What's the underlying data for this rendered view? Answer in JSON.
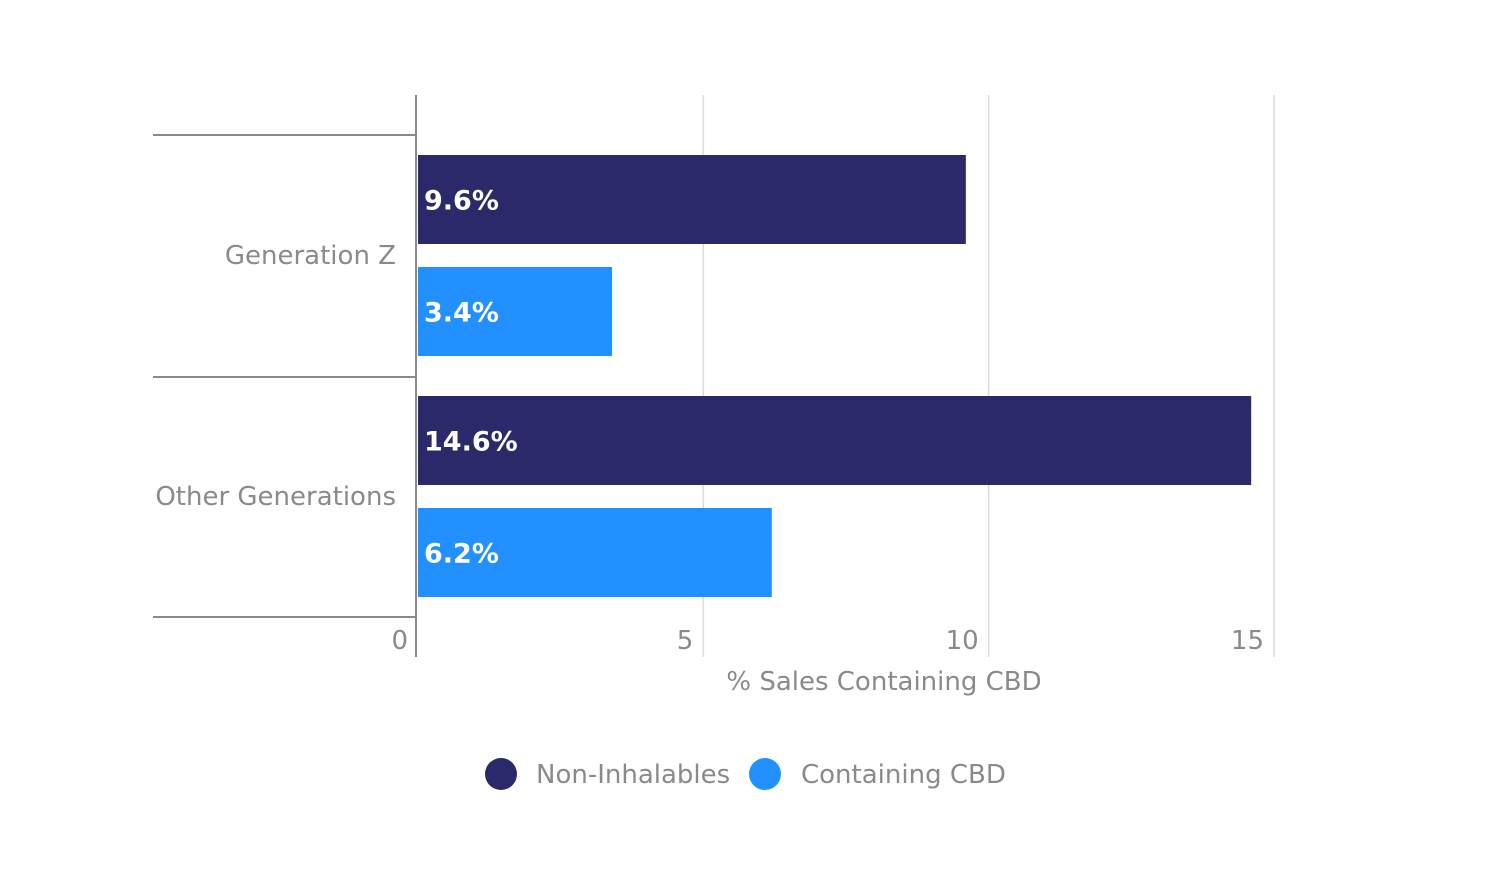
{
  "chart_data": {
    "type": "bar",
    "orientation": "horizontal",
    "categories": [
      "Generation Z",
      "Other Generations"
    ],
    "series": [
      {
        "name": "Non-Inhalables",
        "values": [
          9.6,
          14.6
        ],
        "labels": [
          "9.6%",
          "14.6%"
        ],
        "color": "#2a2a6a"
      },
      {
        "name": "Containing CBD",
        "values": [
          3.4,
          6.2
        ],
        "labels": [
          "3.4%",
          "6.2%"
        ],
        "color": "#2390ff"
      }
    ],
    "xlabel": "% Sales Containing CBD",
    "xlim": [
      0,
      15
    ],
    "xticks": [
      0,
      5,
      10,
      15
    ],
    "xtick_labels": [
      "0",
      "5",
      "10",
      "15"
    ],
    "grid": true,
    "legend": {
      "position": "bottom-center",
      "marker": "circle"
    }
  },
  "colors": {
    "grid": "#dcdcdc",
    "axis": "#8a8a8a",
    "text": "#8a8a8a"
  }
}
